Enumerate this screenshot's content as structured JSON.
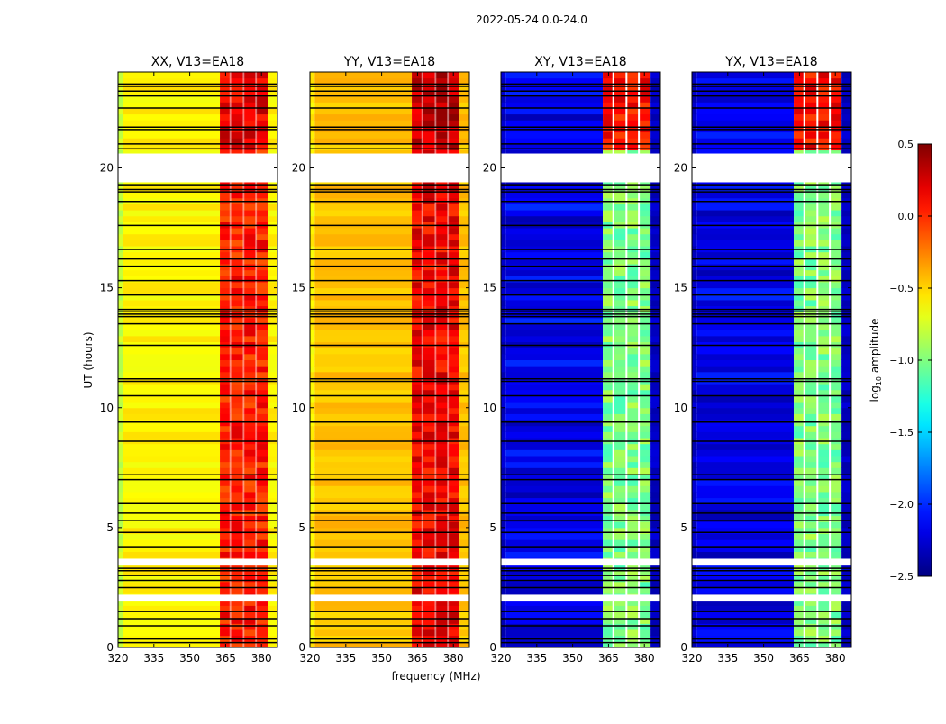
{
  "chart_data": {
    "type": "heatmap",
    "title": "2022-05-24 0.0-24.0",
    "xlabel": "frequency (MHz)",
    "ylabel": "UT (hours)",
    "xlim": [
      320,
      386.7
    ],
    "ylim": [
      0,
      24
    ],
    "xticks": [
      320,
      335,
      350,
      365,
      380
    ],
    "yticks": [
      0,
      5,
      10,
      15,
      20
    ],
    "panels": [
      {
        "title": "XX, V13=EA18",
        "base_log_amp": -0.6,
        "edge_log_amp": -0.8,
        "band_log_amp": 0.05,
        "top_band_log_amp": 0.2
      },
      {
        "title": "YY, V13=EA18",
        "base_log_amp": -0.45,
        "edge_log_amp": -0.6,
        "band_log_amp": 0.15,
        "top_band_log_amp": 0.3
      },
      {
        "title": "XY, V13=EA18",
        "base_log_amp": -2.3,
        "edge_log_amp": -2.3,
        "band_log_amp": -1.0,
        "top_band_log_amp": 0.1
      },
      {
        "title": "YX, V13=EA18",
        "base_log_amp": -2.3,
        "edge_log_amp": -2.3,
        "band_log_amp": -1.0,
        "top_band_log_amp": 0.1
      }
    ],
    "band_mhz": [
      362.6,
      382.6
    ],
    "channel_gaps_mhz": [
      367.0,
      372.5,
      377.7
    ],
    "flagged_blank_hours": [
      [
        19.4,
        20.6
      ],
      [
        3.45,
        3.7
      ],
      [
        1.95,
        2.2
      ]
    ],
    "flagged_black_hours": [
      0.2,
      0.35,
      0.9,
      1.2,
      1.5,
      2.5,
      2.8,
      3.0,
      3.2,
      3.3,
      4.2,
      4.8,
      5.3,
      5.6,
      6.0,
      7.0,
      7.2,
      8.6,
      9.4,
      10.5,
      11.1,
      11.2,
      12.6,
      13.5,
      13.8,
      13.9,
      14.0,
      14.1,
      14.7,
      15.3,
      15.9,
      16.2,
      16.6,
      17.6,
      18.6,
      19.0,
      19.1,
      19.3,
      20.8,
      21.0,
      21.6,
      21.7,
      22.5,
      23.0,
      23.2,
      23.4,
      23.5
    ],
    "colorbar": {
      "label_prefix": "log",
      "label_sub": "10",
      "label_suffix": " amplitude",
      "range": [
        -2.5,
        0.5
      ],
      "ticks": [
        0.5,
        0.0,
        -0.5,
        -1.0,
        -1.5,
        -2.0,
        -2.5
      ],
      "tick_labels": [
        "0.5",
        "0.0",
        "−0.5",
        "−1.0",
        "−1.5",
        "−2.0",
        "−2.5"
      ]
    }
  }
}
